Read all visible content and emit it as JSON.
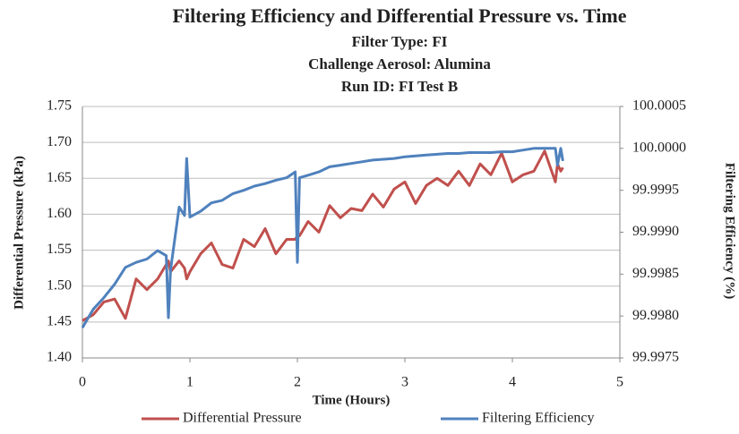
{
  "chart_data": {
    "type": "line",
    "title": "Filtering Efficiency and Differential Pressure vs. Time",
    "subtitles": [
      "Filter Type: FI",
      "Challenge Aerosol: Alumina",
      "Run ID: FI Test B"
    ],
    "x_label": "Time (Hours)",
    "y_label": "Differential Pressure (kPa)",
    "y2_label": "Filtering Efficiency (%)",
    "x": [
      0,
      0.1,
      0.2,
      0.3,
      0.4,
      0.5,
      0.6,
      0.7,
      0.78,
      0.8,
      0.82,
      0.9,
      0.95,
      0.97,
      1.0,
      1.1,
      1.2,
      1.3,
      1.4,
      1.5,
      1.6,
      1.7,
      1.8,
      1.9,
      1.98,
      2.0,
      2.02,
      2.1,
      2.2,
      2.3,
      2.4,
      2.5,
      2.6,
      2.7,
      2.8,
      2.9,
      3.0,
      3.1,
      3.2,
      3.3,
      3.4,
      3.5,
      3.6,
      3.7,
      3.8,
      3.9,
      4.0,
      4.1,
      4.2,
      4.3,
      4.4,
      4.42,
      4.45,
      4.47
    ],
    "series": [
      {
        "name": "Differential Pressure",
        "color": "#c0504d",
        "axis": "y",
        "values": [
          1.452,
          1.46,
          1.478,
          1.482,
          1.455,
          1.51,
          1.495,
          1.51,
          1.53,
          1.535,
          1.52,
          1.535,
          1.525,
          1.51,
          1.52,
          1.545,
          1.56,
          1.53,
          1.525,
          1.565,
          1.555,
          1.58,
          1.545,
          1.565,
          1.565,
          1.57,
          1.57,
          1.59,
          1.575,
          1.612,
          1.595,
          1.608,
          1.605,
          1.628,
          1.61,
          1.635,
          1.645,
          1.615,
          1.64,
          1.65,
          1.64,
          1.66,
          1.64,
          1.67,
          1.655,
          1.685,
          1.645,
          1.655,
          1.66,
          1.688,
          1.645,
          1.67,
          1.66,
          1.665
        ]
      },
      {
        "name": "Filtering Efficiency",
        "color": "#4f81bd",
        "axis": "y2",
        "values": [
          99.99786,
          99.99808,
          99.99822,
          99.99838,
          99.99858,
          99.99864,
          99.99868,
          99.99878,
          99.99872,
          99.99798,
          99.99855,
          99.9993,
          99.9992,
          99.99988,
          99.99918,
          99.99925,
          99.99935,
          99.99938,
          99.99946,
          99.9995,
          99.99955,
          99.99958,
          99.99962,
          99.99965,
          99.99972,
          99.99864,
          99.99965,
          99.99968,
          99.99972,
          99.99978,
          99.9998,
          99.99982,
          99.99984,
          99.99986,
          99.99987,
          99.99988,
          99.9999,
          99.99991,
          99.99992,
          99.99993,
          99.99994,
          99.99994,
          99.99995,
          99.99995,
          99.99995,
          99.99996,
          99.99996,
          99.99998,
          100,
          100,
          100,
          99.9998,
          100,
          99.99985
        ]
      }
    ],
    "xlim": [
      0,
      5
    ],
    "xticks": [
      0,
      1,
      2,
      3,
      4,
      5
    ],
    "ylim": [
      1.4,
      1.75
    ],
    "yticks": [
      {
        "value": 1.4,
        "label": "1.40"
      },
      1.45,
      {
        "value": 1.5,
        "label": "1.50"
      },
      1.55,
      {
        "value": 1.6,
        "label": "1.60"
      },
      1.65,
      {
        "value": 1.7,
        "label": "1.70"
      },
      1.75
    ],
    "y2lim": [
      99.9975,
      100.0005
    ],
    "y2ticks": [
      99.9975,
      {
        "value": 99.998,
        "label": "99.9980"
      },
      99.9985,
      {
        "value": 99.999,
        "label": "99.9990"
      },
      99.9995,
      {
        "value": 100,
        "label": "100.0000"
      },
      100.0005
    ],
    "grid": true,
    "legend": "bottom"
  }
}
